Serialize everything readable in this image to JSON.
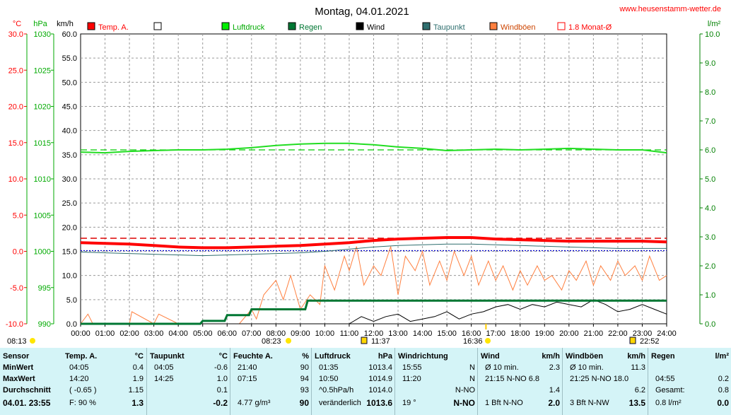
{
  "title": "Montag, 04.01.2021",
  "website": "www.heusenstamm-wetter.de",
  "colors": {
    "temp": "#ff0000",
    "luftdruck": "#00dd00",
    "regen": "#007733",
    "wind": "#000000",
    "taupunkt": "#2f6f6f",
    "windboeen": "#ff8040",
    "month_avg": "#ff4444",
    "axis_right": "#008000",
    "axis_hpa": "#00aa00"
  },
  "units": {
    "celsius": "°C",
    "hpa": "hPa",
    "kmh": "km/h",
    "lm2": "l/m²"
  },
  "legend": [
    {
      "label": "Temp. A.",
      "color": "#ff0000",
      "style": "filled"
    },
    {
      "label": "",
      "color": "#ffffff",
      "style": "outline"
    },
    {
      "label": "Luftdruck",
      "color": "#00ee00",
      "style": "filled"
    },
    {
      "label": "Regen",
      "color": "#007733",
      "style": "filled"
    },
    {
      "label": "Wind",
      "color": "#000000",
      "style": "filled"
    },
    {
      "label": "Taupunkt",
      "color": "#2f6f6f",
      "style": "filled"
    },
    {
      "label": "Windböen",
      "color": "#ff8040",
      "style": "filled"
    },
    {
      "label": "1.8 Monat-Ø",
      "color": "#ff0000",
      "style": "outline"
    }
  ],
  "markers": [
    {
      "label": "08:13",
      "icon": "sunrise-icon",
      "pos": "bottom"
    },
    {
      "label": "08:23",
      "icon": "sun-icon",
      "pos": "mid"
    },
    {
      "label": "11:37",
      "icon": "moon-icon",
      "pos": "mid"
    },
    {
      "label": "16:36",
      "icon": "sunset-icon",
      "pos": "mid"
    },
    {
      "label": "22:52",
      "icon": "moon-icon",
      "pos": "mid"
    }
  ],
  "chart_data": {
    "type": "line",
    "x_ticks": [
      "00:00",
      "01:00",
      "02:00",
      "03:00",
      "04:00",
      "05:00",
      "06:00",
      "07:00",
      "08:00",
      "09:00",
      "10:00",
      "11:00",
      "12:00",
      "13:00",
      "14:00",
      "15:00",
      "16:00",
      "17:00",
      "18:00",
      "19:00",
      "20:00",
      "21:00",
      "22:00",
      "23:00",
      "24:00"
    ],
    "y_temp": {
      "label": "°C",
      "ticks": [
        "30.0",
        "25.0",
        "20.0",
        "15.0",
        "10.0",
        "5.0",
        "0.0",
        "-5.0",
        "-10.0"
      ],
      "range": [
        -10,
        30
      ]
    },
    "y_hpa": {
      "label": "hPa",
      "ticks": [
        "1030",
        "1025",
        "1020",
        "1015",
        "1010",
        "1005",
        "1000",
        "995",
        "990"
      ],
      "range": [
        990,
        1030
      ]
    },
    "y_kmh": {
      "label": "km/h",
      "ticks": [
        "60.0",
        "55.0",
        "50.0",
        "45.0",
        "40.0",
        "35.0",
        "30.0",
        "25.0",
        "20.0",
        "15.0",
        "10.0",
        "5.0",
        "0.0"
      ],
      "range": [
        0,
        60
      ]
    },
    "y_rain": {
      "label": "l/m²",
      "ticks": [
        "10.0",
        "9.0",
        "8.0",
        "7.0",
        "6.0",
        "5.0",
        "4.0",
        "3.0",
        "2.0",
        "1.0",
        "0.0"
      ],
      "range": [
        0,
        10
      ]
    },
    "temp_reference": 1.8,
    "pressure_reference": 1014.0,
    "dewpoint_reference": 0.1,
    "series": [
      {
        "name": "Temp. A.",
        "unit": "°C",
        "x": [
          0,
          1,
          2,
          3,
          4,
          5,
          6,
          7,
          8,
          9,
          10,
          11,
          12,
          13,
          14,
          15,
          16,
          17,
          18,
          19,
          20,
          21,
          22,
          23,
          24
        ],
        "values": [
          1.2,
          1.1,
          1.0,
          0.8,
          0.6,
          0.5,
          0.5,
          0.6,
          0.7,
          0.8,
          1.0,
          1.2,
          1.5,
          1.7,
          1.8,
          1.9,
          1.9,
          1.7,
          1.6,
          1.5,
          1.4,
          1.4,
          1.4,
          1.4,
          1.3
        ]
      },
      {
        "name": "Luftdruck",
        "unit": "hPa",
        "x": [
          0,
          1,
          2,
          3,
          4,
          5,
          6,
          7,
          8,
          9,
          10,
          11,
          12,
          13,
          14,
          15,
          16,
          17,
          18,
          19,
          20,
          21,
          22,
          23,
          24
        ],
        "values": [
          1013.7,
          1013.6,
          1013.8,
          1013.9,
          1014.0,
          1014.0,
          1014.1,
          1014.3,
          1014.6,
          1014.8,
          1014.9,
          1014.9,
          1014.7,
          1014.4,
          1014.2,
          1013.9,
          1014.0,
          1014.1,
          1014.0,
          1014.1,
          1014.2,
          1014.1,
          1014.0,
          1014.0,
          1013.6
        ]
      },
      {
        "name": "Taupunkt",
        "unit": "°C",
        "x": [
          0,
          1,
          2,
          3,
          4,
          5,
          6,
          7,
          8,
          9,
          10,
          11,
          12,
          13,
          14,
          15,
          16,
          17,
          18,
          19,
          20,
          21,
          22,
          23,
          24
        ],
        "values": [
          -0.1,
          -0.2,
          -0.3,
          -0.4,
          -0.5,
          -0.6,
          -0.5,
          -0.4,
          -0.3,
          -0.2,
          0.0,
          0.3,
          0.6,
          0.8,
          0.9,
          1.0,
          1.0,
          0.9,
          0.8,
          0.7,
          0.6,
          0.5,
          0.4,
          0.4,
          0.4
        ]
      },
      {
        "name": "Regen",
        "unit": "l/m²",
        "x": [
          0,
          4.9,
          5.0,
          5.9,
          6.0,
          6.9,
          7.0,
          9.2,
          9.3,
          24
        ],
        "values": [
          0,
          0,
          0.1,
          0.1,
          0.3,
          0.3,
          0.5,
          0.5,
          0.8,
          0.8
        ]
      },
      {
        "name": "Wind",
        "unit": "km/h",
        "x": [
          0,
          11,
          11.5,
          12,
          12.5,
          13,
          13.5,
          14,
          14.5,
          15,
          15.5,
          16,
          16.5,
          17,
          17.5,
          18,
          18.5,
          19,
          19.5,
          20,
          20.5,
          21,
          21.5,
          22,
          22.5,
          23,
          23.5,
          24
        ],
        "values": [
          0,
          0,
          1.5,
          0.5,
          1.5,
          2.0,
          0.5,
          1.0,
          1.5,
          2.5,
          1.0,
          2.0,
          2.5,
          3.5,
          4.0,
          3.0,
          4.0,
          3.5,
          4.5,
          4.0,
          3.5,
          5.0,
          4.0,
          2.5,
          3.0,
          4.0,
          3.0,
          2.0
        ]
      },
      {
        "name": "Windböen",
        "unit": "km/h",
        "x": [
          0,
          0.3,
          0.5,
          2,
          2.1,
          3,
          3.2,
          4,
          5.5,
          6.5,
          7,
          7.2,
          7.5,
          8,
          8.3,
          8.6,
          9,
          9.4,
          9.8,
          10,
          10.4,
          10.8,
          11,
          11.3,
          11.6,
          12,
          12.3,
          12.7,
          13,
          13.3,
          13.7,
          14,
          14.3,
          14.7,
          15,
          15.3,
          15.7,
          16,
          16.3,
          16.7,
          17,
          17.3,
          17.7,
          18,
          18.3,
          18.7,
          19,
          19.3,
          19.7,
          20,
          20.3,
          20.7,
          21,
          21.3,
          21.7,
          22,
          22.3,
          22.7,
          23,
          23.3,
          23.7,
          24
        ],
        "values": [
          0,
          2,
          0,
          0,
          2.5,
          0,
          2,
          0,
          0,
          0,
          3,
          1,
          6,
          9,
          5,
          10,
          3,
          6,
          4,
          12,
          7,
          14,
          11,
          16,
          8,
          12,
          10,
          16,
          6,
          14,
          11,
          15,
          8,
          13,
          9,
          15,
          10,
          14,
          8,
          13,
          9,
          12,
          7,
          11,
          8,
          12,
          9,
          10,
          7,
          11,
          9,
          13,
          8,
          12,
          9,
          13,
          10,
          12,
          9,
          14,
          9,
          10
        ]
      }
    ]
  },
  "stats": {
    "row_labels": [
      "Sensor",
      "MinWert",
      "MaxWert",
      "Durchschnitt",
      "04.01. 23:55"
    ],
    "columns": [
      {
        "header": "Temp. A.",
        "unit": "°C",
        "rows": [
          [
            "04:05",
            "0.4"
          ],
          [
            "14:20",
            "1.9"
          ],
          [
            "( -0.65 )",
            "1.15"
          ],
          [
            "F: 90 %",
            "1.3"
          ]
        ]
      },
      {
        "header": "Taupunkt",
        "unit": "°C",
        "rows": [
          [
            "04:05",
            "-0.6"
          ],
          [
            "14:25",
            "1.0"
          ],
          [
            "",
            "0.1"
          ],
          [
            "",
            "-0.2"
          ]
        ]
      },
      {
        "header": "Feuchte A.",
        "unit": "%",
        "rows": [
          [
            "21:40",
            "90"
          ],
          [
            "07:15",
            "94"
          ],
          [
            "",
            "93"
          ],
          [
            "4.77 g/m³",
            "90"
          ]
        ]
      },
      {
        "header": "Luftdruck",
        "unit": "hPa",
        "rows": [
          [
            "01:35",
            "1013.4"
          ],
          [
            "10:50",
            "1014.9"
          ],
          [
            "^0.5hPa/h",
            "1014.0"
          ],
          [
            "veränderlich",
            "1013.6"
          ]
        ]
      },
      {
        "header": "Windrichtung",
        "unit": "",
        "rows": [
          [
            "15:55",
            "N"
          ],
          [
            "11:20",
            "N"
          ],
          [
            "",
            "N-NO"
          ],
          [
            "19 °",
            "N-NO"
          ]
        ]
      },
      {
        "header": "Wind",
        "unit": "km/h",
        "rows": [
          [
            "Ø 10 min.",
            "2.3"
          ],
          [
            "21:15   N-NO 6.8",
            ""
          ],
          [
            "",
            "1.4"
          ],
          [
            "1 Bft N-NO",
            "2.0"
          ]
        ]
      },
      {
        "header": "Windböen",
        "unit": "km/h",
        "rows": [
          [
            "Ø 10 min.",
            "11.3"
          ],
          [
            "21:25   N-NO 18.0",
            ""
          ],
          [
            "",
            "6.2"
          ],
          [
            "3 Bft N-NW",
            "13.5"
          ]
        ]
      },
      {
        "header": "Regen",
        "unit": "l/m²",
        "rows": [
          [
            "",
            ""
          ],
          [
            "04:55",
            "0.2"
          ],
          [
            "Gesamt:",
            "0.8"
          ],
          [
            "0.8 l/m²",
            "0.0"
          ]
        ]
      }
    ]
  }
}
